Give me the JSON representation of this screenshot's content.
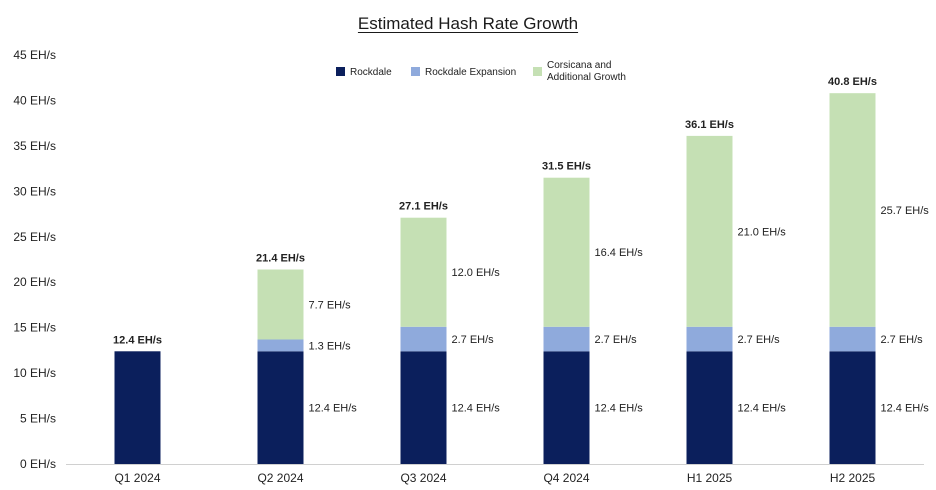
{
  "chart_data": {
    "type": "bar",
    "stacked": true,
    "title": "Estimated Hash Rate Growth",
    "xlabel": "",
    "ylabel": "",
    "categories": [
      "Q1 2024",
      "Q2 2024",
      "Q3 2024",
      "Q4 2024",
      "H1 2025",
      "H2 2025"
    ],
    "ylim": [
      0,
      45
    ],
    "yticks": [
      0,
      5,
      10,
      15,
      20,
      25,
      30,
      35,
      40,
      45
    ],
    "ytick_labels": [
      "0 EH/s",
      "5 EH/s",
      "10 EH/s",
      "15 EH/s",
      "20 EH/s",
      "25 EH/s",
      "30 EH/s",
      "35 EH/s",
      "40 EH/s",
      "45 EH/s"
    ],
    "grid": false,
    "legend_position": "top",
    "series": [
      {
        "name": "Rockdale",
        "color": "#0b1f5c",
        "values": [
          12.4,
          12.4,
          12.4,
          12.4,
          12.4,
          12.4
        ],
        "labels": [
          "",
          "12.4 EH/s",
          "12.4 EH/s",
          "12.4 EH/s",
          "12.4 EH/s",
          "12.4 EH/s"
        ]
      },
      {
        "name": "Rockdale Expansion",
        "color": "#8faadc",
        "values": [
          0,
          1.3,
          2.7,
          2.7,
          2.7,
          2.7
        ],
        "labels": [
          "",
          "1.3 EH/s",
          "2.7 EH/s",
          "2.7 EH/s",
          "2.7 EH/s",
          "2.7 EH/s"
        ]
      },
      {
        "name": "Corsicana and Additional Growth",
        "name_lines": [
          "Corsicana and",
          "Additional Growth"
        ],
        "color": "#c5e0b4",
        "values": [
          0,
          7.7,
          12.0,
          16.4,
          21.0,
          25.7
        ],
        "labels": [
          "",
          "7.7 EH/s",
          "12.0 EH/s",
          "16.4 EH/s",
          "21.0 EH/s",
          "25.7 EH/s"
        ]
      }
    ],
    "totals": [
      12.4,
      21.4,
      27.1,
      31.5,
      36.1,
      40.8
    ],
    "total_labels": [
      "12.4 EH/s",
      "21.4 EH/s",
      "27.1 EH/s",
      "31.5 EH/s",
      "36.1 EH/s",
      "40.8 EH/s"
    ]
  }
}
